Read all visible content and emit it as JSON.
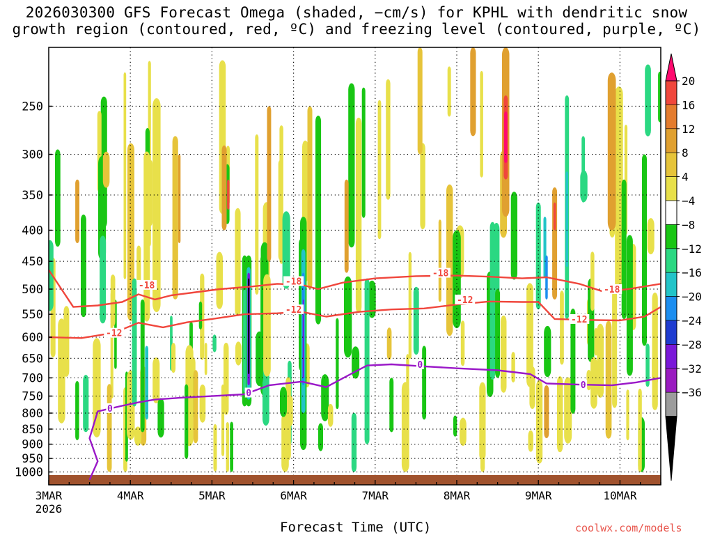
{
  "title_line1": "2026030300 GFS Forecast Omega (shaded, −cm/s) for KPHL with dendritic snow",
  "title_line2": "growth region (contoured, red, ºC) and freezing level (contoured, purple, ºC)",
  "xlabel": "Forecast Time (UTC)",
  "credit": "coolwx.com/models",
  "chart_data": {
    "type": "time-height contour",
    "title": "2026030300 GFS Forecast Omega (shaded, −cm/s) for KPHL with dendritic snow growth region (contoured, red, ºC) and freezing level (contoured, purple, ºC)",
    "xlabel": "Forecast Time (UTC)",
    "x_days": [
      0,
      7.5
    ],
    "x_ticks": [
      "3MAR",
      "4MAR",
      "5MAR",
      "6MAR",
      "7MAR",
      "8MAR",
      "9MAR",
      "10MAR"
    ],
    "x_tick_year": "2026",
    "y_range_hpa": [
      200,
      1050
    ],
    "y_ticks": [
      250,
      300,
      350,
      400,
      450,
      500,
      550,
      600,
      650,
      700,
      750,
      800,
      850,
      900,
      950,
      1000
    ],
    "colorbar": {
      "labels": [
        "20",
        "16",
        "12",
        "8",
        "4",
        "−4",
        "−8",
        "−12",
        "−16",
        "−20",
        "−24",
        "−28",
        "−32",
        "−36"
      ],
      "colors": [
        "#ff0a6e",
        "#f0473c",
        "#e47c2e",
        "#e0a030",
        "#e6c43a",
        "#e8e04a",
        "#ffffff",
        "#19c614",
        "#2bd882",
        "#22c4c8",
        "#1c8ef0",
        "#1f3cd0",
        "#7a18d8",
        "#9a1cc0",
        "#9c9c9c",
        "#000000"
      ]
    },
    "contours": [
      {
        "label": "-18",
        "color": "#f0463c",
        "points": [
          [
            0,
            465
          ],
          [
            0.3,
            535
          ],
          [
            0.6,
            532
          ],
          [
            0.9,
            525
          ],
          [
            1.1,
            510
          ],
          [
            1.3,
            520
          ],
          [
            1.5,
            512
          ],
          [
            1.8,
            506
          ],
          [
            2.1,
            500
          ],
          [
            2.5,
            495
          ],
          [
            2.8,
            490
          ],
          [
            3.1,
            492
          ],
          [
            3.3,
            500
          ],
          [
            3.6,
            488
          ],
          [
            4.0,
            480
          ],
          [
            4.5,
            476
          ],
          [
            5.0,
            475
          ],
          [
            5.4,
            477
          ],
          [
            5.8,
            480
          ],
          [
            6.1,
            478
          ],
          [
            6.5,
            490
          ],
          [
            6.8,
            505
          ],
          [
            7.1,
            500
          ],
          [
            7.5,
            490
          ]
        ]
      },
      {
        "label": "-12",
        "color": "#f0463c",
        "points": [
          [
            0,
            600
          ],
          [
            0.4,
            602
          ],
          [
            0.8,
            590
          ],
          [
            1.1,
            568
          ],
          [
            1.4,
            578
          ],
          [
            1.7,
            567
          ],
          [
            2.0,
            560
          ],
          [
            2.4,
            550
          ],
          [
            2.8,
            548
          ],
          [
            3.1,
            545
          ],
          [
            3.4,
            555
          ],
          [
            3.8,
            545
          ],
          [
            4.2,
            540
          ],
          [
            4.6,
            538
          ],
          [
            5.0,
            530
          ],
          [
            5.4,
            524
          ],
          [
            5.8,
            525
          ],
          [
            6.0,
            525
          ],
          [
            6.2,
            560
          ],
          [
            6.6,
            562
          ],
          [
            7.0,
            563
          ],
          [
            7.3,
            555
          ],
          [
            7.5,
            535
          ]
        ]
      },
      {
        "label": "0",
        "color": "#9a18c8",
        "points": [
          [
            0.5,
            1030
          ],
          [
            0.6,
            960
          ],
          [
            0.5,
            880
          ],
          [
            0.6,
            795
          ],
          [
            0.9,
            778
          ],
          [
            1.1,
            768
          ],
          [
            1.3,
            760
          ],
          [
            1.6,
            755
          ],
          [
            2.0,
            750
          ],
          [
            2.4,
            745
          ],
          [
            2.7,
            720
          ],
          [
            3.1,
            710
          ],
          [
            3.4,
            725
          ],
          [
            3.7,
            690
          ],
          [
            3.9,
            668
          ],
          [
            4.2,
            665
          ],
          [
            4.6,
            670
          ],
          [
            5.0,
            675
          ],
          [
            5.5,
            680
          ],
          [
            5.9,
            690
          ],
          [
            6.1,
            715
          ],
          [
            6.5,
            718
          ],
          [
            6.9,
            720
          ],
          [
            7.2,
            712
          ],
          [
            7.5,
            700
          ]
        ]
      }
    ],
    "contour_labels": [
      {
        "text": "-18",
        "day": 1.2,
        "hpa": 492
      },
      {
        "text": "-18",
        "day": 3.0,
        "hpa": 485
      },
      {
        "text": "-18",
        "day": 4.8,
        "hpa": 470
      },
      {
        "text": "-18",
        "day": 6.9,
        "hpa": 500
      },
      {
        "text": "-12",
        "day": 0.8,
        "hpa": 590
      },
      {
        "text": "-12",
        "day": 3.0,
        "hpa": 540
      },
      {
        "text": "-12",
        "day": 5.1,
        "hpa": 520
      },
      {
        "text": "-12",
        "day": 6.5,
        "hpa": 560
      },
      {
        "text": "0",
        "day": 0.75,
        "hpa": 785
      },
      {
        "text": "0",
        "day": 2.45,
        "hpa": 740
      },
      {
        "text": "0",
        "day": 4.55,
        "hpa": 665
      },
      {
        "text": "0",
        "day": 6.55,
        "hpa": 718
      }
    ]
  }
}
